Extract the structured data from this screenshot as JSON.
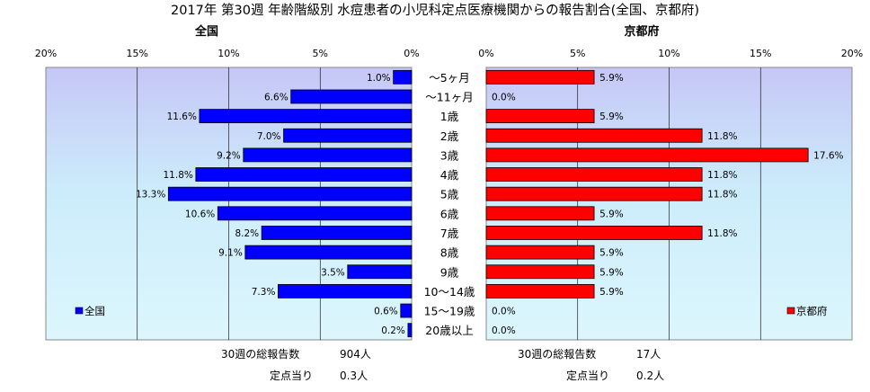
{
  "chart_data": {
    "type": "bar",
    "title": "2017年 第30週 年齢階級別 水痘患者の小児科定点医療機関からの報告割合(全国、京都府)",
    "categories": [
      "～5ヶ月",
      "～11ヶ月",
      "1歳",
      "2歳",
      "3歳",
      "4歳",
      "5歳",
      "6歳",
      "7歳",
      "8歳",
      "9歳",
      "10～14歳",
      "15～19歳",
      "20歳以上"
    ],
    "series": [
      {
        "name": "全国",
        "color": "#0000ff",
        "values": [
          1.0,
          6.6,
          11.6,
          7.0,
          9.2,
          11.8,
          13.3,
          10.6,
          8.2,
          9.1,
          3.5,
          7.3,
          0.6,
          0.2
        ],
        "value_labels": [
          "1.0%",
          "6.6%",
          "11.6%",
          "7.0%",
          "9.2%",
          "11.8%",
          "13.3%",
          "10.6%",
          "8.2%",
          "9.1%",
          "3.5%",
          "7.3%",
          "0.6%",
          "0.2%"
        ]
      },
      {
        "name": "京都府",
        "color": "#ff0000",
        "values": [
          5.9,
          0.0,
          5.9,
          11.8,
          17.6,
          11.8,
          11.8,
          5.9,
          11.8,
          5.9,
          5.9,
          5.9,
          0.0,
          0.0
        ],
        "value_labels": [
          "5.9%",
          "0.0%",
          "5.9%",
          "11.8%",
          "17.6%",
          "11.8%",
          "11.8%",
          "5.9%",
          "11.8%",
          "5.9%",
          "5.9%",
          "5.9%",
          "0.0%",
          "0.0%"
        ]
      }
    ],
    "xlim": [
      0,
      20
    ],
    "x_ticks": [
      0,
      5,
      10,
      15,
      20
    ],
    "x_tick_labels": [
      "0%",
      "5%",
      "10%",
      "15%",
      "20%"
    ],
    "left_panel_title": "全国",
    "right_panel_title": "京都府",
    "legend_left": {
      "label": "全国",
      "placement": "bottom-left"
    },
    "legend_right": {
      "label": "京都府",
      "placement": "bottom-right"
    },
    "grid": true
  },
  "summary": {
    "national_total_label": "30週の総報告数",
    "national_total_value": "904人",
    "national_per_label": "定点当り",
    "national_per_value": "0.3人",
    "kyoto_total_label": "30週の総報告数",
    "kyoto_total_value": "17人",
    "kyoto_per_label": "定点当り",
    "kyoto_per_value": "0.2人"
  }
}
